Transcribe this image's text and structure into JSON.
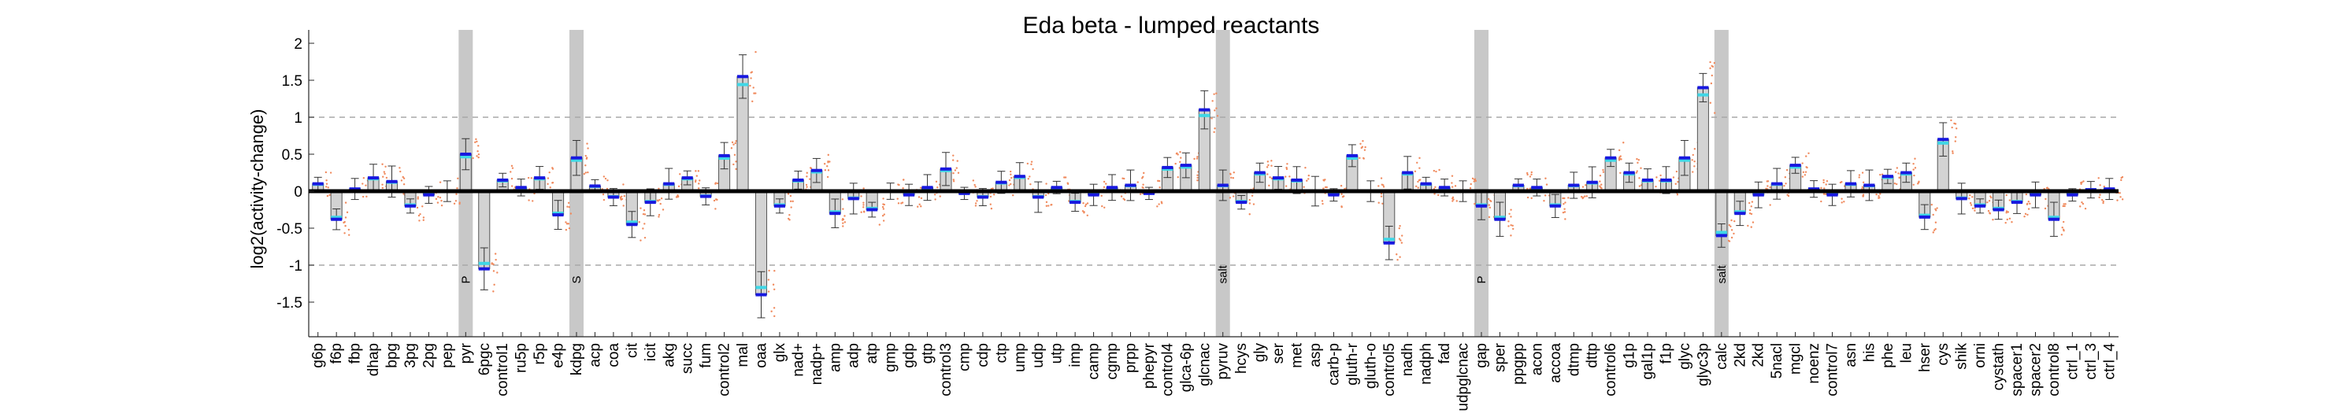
{
  "chart_data": {
    "type": "bar",
    "title": "Eda beta - lumped reactants",
    "xlabel": "",
    "ylabel": "log2(activity-change)",
    "ylim": [
      -1.95,
      2.2
    ],
    "yticks": [
      -1.5,
      -1,
      -0.5,
      0,
      0.5,
      1,
      1.5,
      2
    ],
    "grid": "dashed lines at -1 and 1",
    "categories": [
      "g6p",
      "f6p",
      "fbp",
      "dhap",
      "bpg",
      "3pg",
      "2pg",
      "pep",
      "pyr",
      "6pgc",
      "control1",
      "ru5p",
      "r5p",
      "e4p",
      "kdpg",
      "acp",
      "coa",
      "cit",
      "icit",
      "akg",
      "succ",
      "fum",
      "control2",
      "mal",
      "oaa",
      "glx",
      "nad+",
      "nadp+",
      "amp",
      "adp",
      "atp",
      "gmp",
      "gdp",
      "gtp",
      "control3",
      "cmp",
      "cdp",
      "ctp",
      "ump",
      "udp",
      "utp",
      "imp",
      "camp",
      "cgmp",
      "prpp",
      "phepyr",
      "control4",
      "glca-6p",
      "glcnac",
      "pyruv",
      "hcys",
      "gly",
      "ser",
      "met",
      "asp",
      "carb-p",
      "gluth-r",
      "gluth-o",
      "control5",
      "nadh",
      "nadph",
      "fad",
      "udpglcnac",
      "gap",
      "sper",
      "ppgpp",
      "acon",
      "accoa",
      "dtmp",
      "dttp",
      "control6",
      "g1p",
      "gal1p",
      "f1p",
      "glyc",
      "glyc3p",
      "calc",
      "2kd",
      "2kd",
      "5nacl",
      "mgcl",
      "noenz",
      "control7",
      "asn",
      "his",
      "phe",
      "leu",
      "hser",
      "cys",
      "shik",
      "orni",
      "cystath",
      "spacer1",
      "spacer2",
      "control8",
      "ctrl_1",
      "ctrl_3",
      "ctrl_4"
    ],
    "series": [
      {
        "values": [
          0.1,
          -0.38,
          0.03,
          0.18,
          0.13,
          -0.2,
          -0.05,
          0.0,
          0.5,
          -1.05,
          0.15,
          0.05,
          0.18,
          -0.32,
          0.45,
          0.07,
          -0.08,
          -0.45,
          -0.15,
          0.1,
          0.18,
          -0.07,
          0.48,
          1.55,
          -1.4,
          -0.2,
          0.15,
          0.28,
          -0.3,
          -0.1,
          -0.25,
          0.0,
          -0.05,
          0.05,
          0.3,
          -0.03,
          -0.08,
          0.12,
          0.2,
          -0.08,
          0.05,
          -0.15,
          -0.05,
          0.05,
          0.08,
          -0.03,
          0.32,
          0.35,
          1.1,
          0.08,
          -0.15,
          0.25,
          0.18,
          0.15,
          0.0,
          -0.05,
          0.48,
          0.0,
          -0.7,
          0.25,
          0.1,
          0.05,
          0.0,
          -0.2,
          -0.38,
          0.08,
          0.05,
          -0.2,
          0.08,
          0.12,
          0.45,
          0.25,
          0.15,
          0.15,
          0.45,
          1.4,
          -0.6,
          -0.3,
          -0.05,
          0.1,
          0.35,
          0.03,
          -0.05,
          0.1,
          0.08,
          0.2,
          0.25,
          -0.35,
          0.7,
          -0.1,
          -0.2,
          -0.25,
          -0.15,
          -0.05,
          -0.38,
          -0.05,
          0.02,
          0.03
        ]
      }
    ],
    "band_categories": [
      "pyr",
      "kdpg",
      "pyruv",
      "gap",
      "calc"
    ],
    "band_labels": [
      "P",
      "S",
      "salt",
      "P",
      "salt"
    ]
  }
}
